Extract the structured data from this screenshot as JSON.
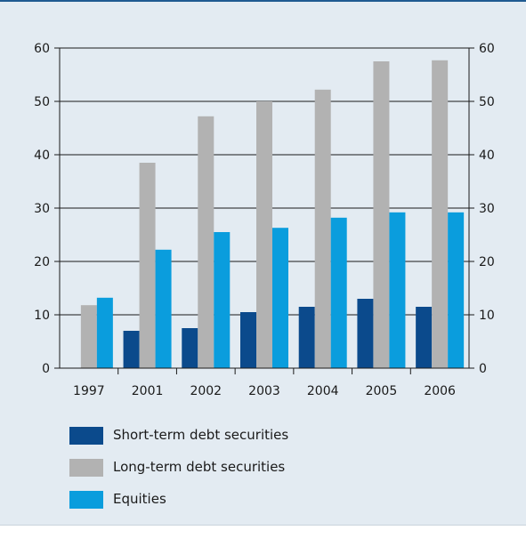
{
  "colors": {
    "background": "#e3ebf2",
    "top_rule": "#1f5a91",
    "axis": "#1a1a1a",
    "gridline": "#1a1a1a"
  },
  "chart_data": {
    "type": "bar",
    "title": "",
    "xlabel": "",
    "ylabel": "",
    "categories": [
      "1997",
      "2001",
      "2002",
      "2003",
      "2004",
      "2005",
      "2006"
    ],
    "ylim": [
      0,
      60
    ],
    "yticks": [
      "0",
      "10",
      "20",
      "30",
      "40",
      "50",
      "60"
    ],
    "right_axis_ticks": [
      "0",
      "10",
      "20",
      "30",
      "40",
      "50",
      "60"
    ],
    "grid": "horizontal",
    "legend_position": "bottom-left",
    "series": [
      {
        "name": "Short-term debt securities",
        "color": "#0b4a8c",
        "values": [
          null,
          7.0,
          7.5,
          10.5,
          11.5,
          13.0,
          11.5
        ]
      },
      {
        "name": "Long-term debt securities",
        "color": "#b2b2b2",
        "values": [
          11.8,
          38.5,
          47.2,
          50.0,
          52.2,
          57.5,
          57.7
        ]
      },
      {
        "name": "Equities",
        "color": "#0a9ddd",
        "values": [
          13.2,
          22.2,
          25.5,
          26.3,
          28.2,
          29.2,
          29.2
        ]
      }
    ]
  }
}
